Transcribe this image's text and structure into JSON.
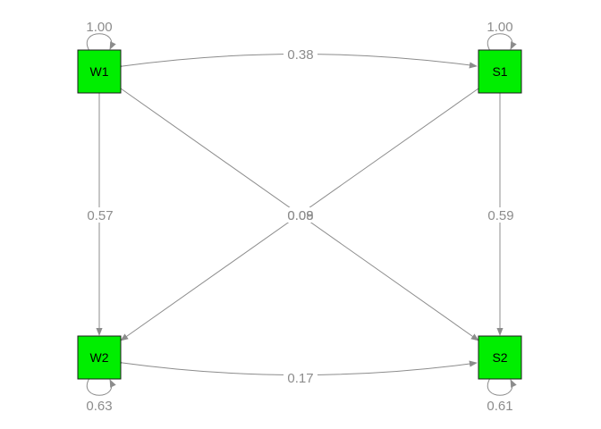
{
  "colors": {
    "node_fill": "#00ee00",
    "edge": "#8c8c8c",
    "node_border": "#1a1a1a",
    "label": "#8c8c8c"
  },
  "nodes": [
    {
      "id": "W1",
      "label": "W1"
    },
    {
      "id": "S1",
      "label": "S1"
    },
    {
      "id": "W2",
      "label": "W2"
    },
    {
      "id": "S2",
      "label": "S2"
    }
  ],
  "paths": [
    {
      "from": "W1",
      "to": "W2",
      "label": "0.57",
      "type": "directed"
    },
    {
      "from": "S1",
      "to": "S2",
      "label": "0.59",
      "type": "directed"
    },
    {
      "from": "W1",
      "to": "S2",
      "label": "0.09",
      "type": "directed"
    },
    {
      "from": "S1",
      "to": "W2",
      "label": "0.08",
      "type": "directed"
    },
    {
      "from": "W1",
      "to": "S1",
      "label": "0.38",
      "type": "covariance"
    },
    {
      "from": "W2",
      "to": "S2",
      "label": "0.17",
      "type": "covariance"
    }
  ],
  "variances": [
    {
      "node": "W1",
      "label": "1.00"
    },
    {
      "node": "S1",
      "label": "1.00"
    },
    {
      "node": "W2",
      "label": "0.63"
    },
    {
      "node": "S2",
      "label": "0.61"
    }
  ]
}
